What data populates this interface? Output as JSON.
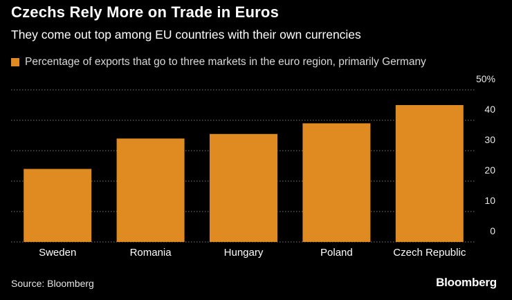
{
  "header": {
    "title": "Czechs Rely More on Trade in Euros",
    "subtitle": "They come out top among EU countries with their own currencies"
  },
  "footer": {
    "source": "Source: Bloomberg",
    "brand": "Bloomberg"
  },
  "colors": {
    "bar": "#e08a22",
    "background": "#000000",
    "grid": "#7a7a7a"
  },
  "chart_data": {
    "type": "bar",
    "title": "Czechs Rely More on Trade in Euros",
    "subtitle": "They come out top among EU countries with their own currencies",
    "legend": [
      "Percentage of exports that go to three markets in the euro region, primarily Germany"
    ],
    "categories": [
      "Sweden",
      "Romania",
      "Hungary",
      "Poland",
      "Czech Republic"
    ],
    "values": [
      24,
      34,
      35.5,
      39,
      45
    ],
    "ylim": [
      0,
      50
    ],
    "yticks": [
      0,
      10,
      20,
      30,
      40,
      50
    ],
    "ytick_labels": [
      "0",
      "10",
      "20",
      "30",
      "40",
      "50%"
    ],
    "xlabel": "",
    "ylabel": "",
    "grid": true
  }
}
